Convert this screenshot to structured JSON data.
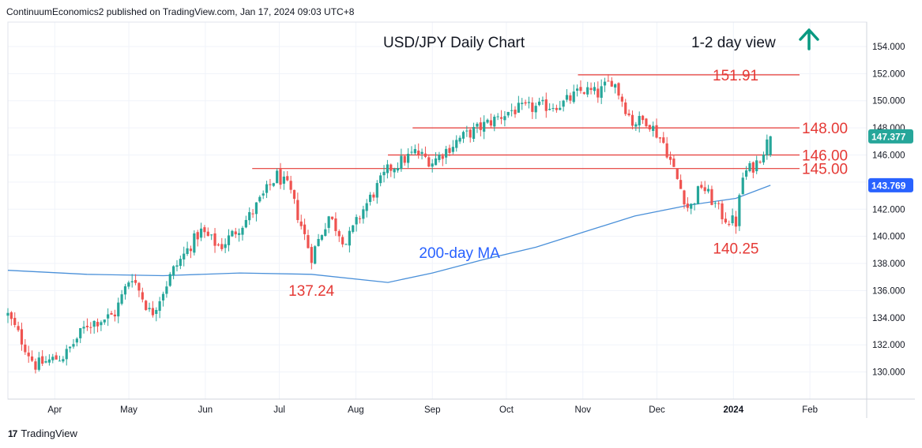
{
  "header": {
    "publisher_line": "ContinuumEconomics2 published on TradingView.com, Jan 17, 2024 09:03 UTC+8"
  },
  "footer": {
    "logo_glyph": "17",
    "brand": "TradingView"
  },
  "chart_data": {
    "type": "candlestick",
    "title": "USD/JPY Daily Chart",
    "view_label": "1-2 day view",
    "view_direction": "up-arrow",
    "colors": {
      "up": "#26a69a",
      "down": "#ef5350",
      "level_line": "#e53935",
      "level_text": "#e53935",
      "ma": "#4a90d9",
      "ma_text": "#2962ff",
      "arrow": "#089981"
    },
    "ylim": [
      128.0,
      155.8
    ],
    "y_ticks": [
      "130.000",
      "132.000",
      "134.000",
      "136.000",
      "138.000",
      "140.000",
      "142.000",
      "144.000",
      "146.000",
      "148.000",
      "150.000",
      "152.000",
      "154.000"
    ],
    "x_ticks": [
      "Apr",
      "May",
      "Jun",
      "Jul",
      "Aug",
      "Sep",
      "Oct",
      "Nov",
      "Dec",
      "2024",
      "Feb"
    ],
    "grid": true,
    "price_tags": [
      {
        "label": "147.377",
        "value": 147.377,
        "color": "#26a69a"
      },
      {
        "label": "143.769",
        "value": 143.769,
        "color": "#2962ff"
      }
    ],
    "levels": [
      {
        "label": "151.91",
        "value": 151.91,
        "from": "2023-10-30"
      },
      {
        "label": "148.00",
        "value": 148.0,
        "from": "2023-08-24"
      },
      {
        "label": "146.00",
        "value": 146.0,
        "from": "2023-08-14"
      },
      {
        "label": "145.00",
        "value": 145.0,
        "from": "2023-06-20"
      }
    ],
    "annotations": [
      {
        "label": "137.24",
        "date": "2023-07-14",
        "value": 137.24
      },
      {
        "label": "140.25",
        "date": "2024-01-02",
        "value": 140.25
      },
      {
        "label": "200-day MA",
        "date": "2023-09-12",
        "value": 138.7
      }
    ],
    "ma_200": [
      {
        "date": "2023-03-13",
        "value": 137.5
      },
      {
        "date": "2023-04-14",
        "value": 137.2
      },
      {
        "date": "2023-05-15",
        "value": 137.1
      },
      {
        "date": "2023-06-15",
        "value": 137.3
      },
      {
        "date": "2023-07-14",
        "value": 137.2
      },
      {
        "date": "2023-08-14",
        "value": 136.6
      },
      {
        "date": "2023-09-01",
        "value": 137.3
      },
      {
        "date": "2023-09-22",
        "value": 138.3
      },
      {
        "date": "2023-10-13",
        "value": 139.2
      },
      {
        "date": "2023-11-01",
        "value": 140.3
      },
      {
        "date": "2023-11-22",
        "value": 141.5
      },
      {
        "date": "2023-12-14",
        "value": 142.3
      },
      {
        "date": "2024-01-02",
        "value": 142.8
      },
      {
        "date": "2024-01-16",
        "value": 143.769
      }
    ],
    "price_path": [
      {
        "date": "2023-03-13",
        "value": 134.2
      },
      {
        "date": "2023-03-24",
        "value": 130.5
      },
      {
        "date": "2023-04-05",
        "value": 131.2
      },
      {
        "date": "2023-04-14",
        "value": 133.5
      },
      {
        "date": "2023-04-25",
        "value": 134.2
      },
      {
        "date": "2023-05-02",
        "value": 137.2
      },
      {
        "date": "2023-05-10",
        "value": 134.2
      },
      {
        "date": "2023-05-19",
        "value": 137.5
      },
      {
        "date": "2023-05-30",
        "value": 140.4
      },
      {
        "date": "2023-06-07",
        "value": 139.2
      },
      {
        "date": "2023-06-19",
        "value": 141.5
      },
      {
        "date": "2023-06-30",
        "value": 144.5
      },
      {
        "date": "2023-07-05",
        "value": 143.5
      },
      {
        "date": "2023-07-14",
        "value": 138.5
      },
      {
        "date": "2023-07-21",
        "value": 141.5
      },
      {
        "date": "2023-07-28",
        "value": 139.5
      },
      {
        "date": "2023-08-04",
        "value": 142.0
      },
      {
        "date": "2023-08-14",
        "value": 144.9
      },
      {
        "date": "2023-08-25",
        "value": 146.2
      },
      {
        "date": "2023-09-01",
        "value": 145.5
      },
      {
        "date": "2023-09-12",
        "value": 147.2
      },
      {
        "date": "2023-09-22",
        "value": 148.2
      },
      {
        "date": "2023-10-03",
        "value": 149.3
      },
      {
        "date": "2023-10-13",
        "value": 149.5
      },
      {
        "date": "2023-10-24",
        "value": 149.8
      },
      {
        "date": "2023-11-01",
        "value": 150.8
      },
      {
        "date": "2023-11-07",
        "value": 150.5
      },
      {
        "date": "2023-11-13",
        "value": 151.6
      },
      {
        "date": "2023-11-21",
        "value": 148.4
      },
      {
        "date": "2023-11-27",
        "value": 148.6
      },
      {
        "date": "2023-12-04",
        "value": 146.8
      },
      {
        "date": "2023-12-08",
        "value": 144.8
      },
      {
        "date": "2023-12-14",
        "value": 141.9
      },
      {
        "date": "2023-12-19",
        "value": 143.8
      },
      {
        "date": "2023-12-28",
        "value": 141.4
      },
      {
        "date": "2024-01-02",
        "value": 141.0
      },
      {
        "date": "2024-01-05",
        "value": 144.6
      },
      {
        "date": "2024-01-10",
        "value": 145.3
      },
      {
        "date": "2024-01-16",
        "value": 147.377
      }
    ]
  }
}
